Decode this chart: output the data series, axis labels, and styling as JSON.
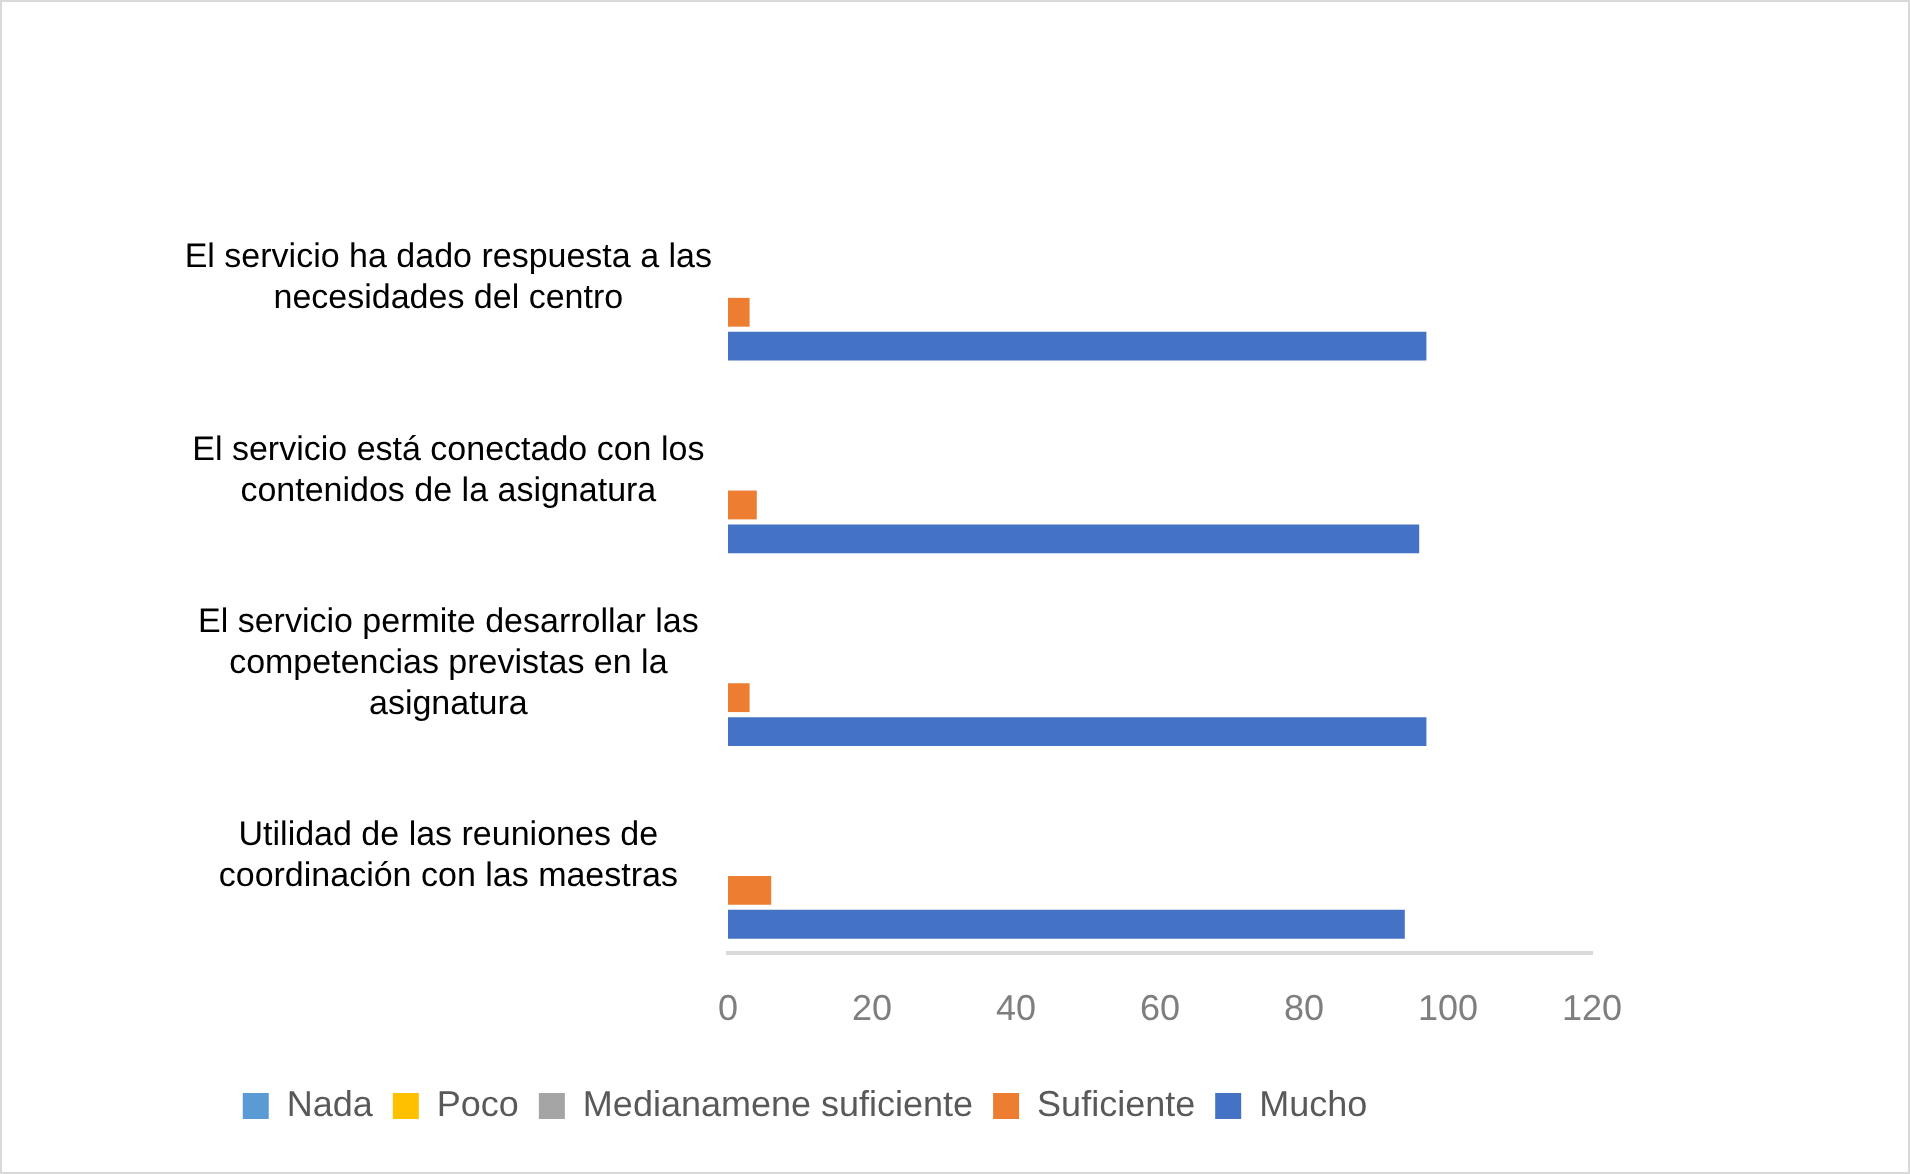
{
  "chart_data": {
    "type": "bar",
    "orientation": "horizontal",
    "categories": [
      "El servicio ha dado respuesta a las necesidades del centro",
      "El servicio está conectado con los contenidos de la asignatura",
      "El servicio permite desarrollar las competencias previstas en la asignatura",
      "Utilidad de las reuniones de coordinación con las maestras"
    ],
    "series": [
      {
        "name": "Nada",
        "color": "#5b9bd5",
        "values": [
          0,
          0,
          0,
          0
        ]
      },
      {
        "name": "Poco",
        "color": "#ffc000",
        "values": [
          0,
          0,
          0,
          0
        ]
      },
      {
        "name": "Medianamene suficiente",
        "color": "#a5a5a5",
        "values": [
          0,
          0,
          0,
          0
        ]
      },
      {
        "name": "Suficiente",
        "color": "#ed7d31",
        "values": [
          3,
          4,
          3,
          6
        ]
      },
      {
        "name": "Mucho",
        "color": "#4472c4",
        "values": [
          97,
          96,
          97,
          94
        ]
      }
    ],
    "xlim": [
      0,
      120
    ],
    "xticks": [
      0,
      20,
      40,
      60,
      80,
      100,
      120
    ],
    "grid": false,
    "legend": "bottom"
  }
}
